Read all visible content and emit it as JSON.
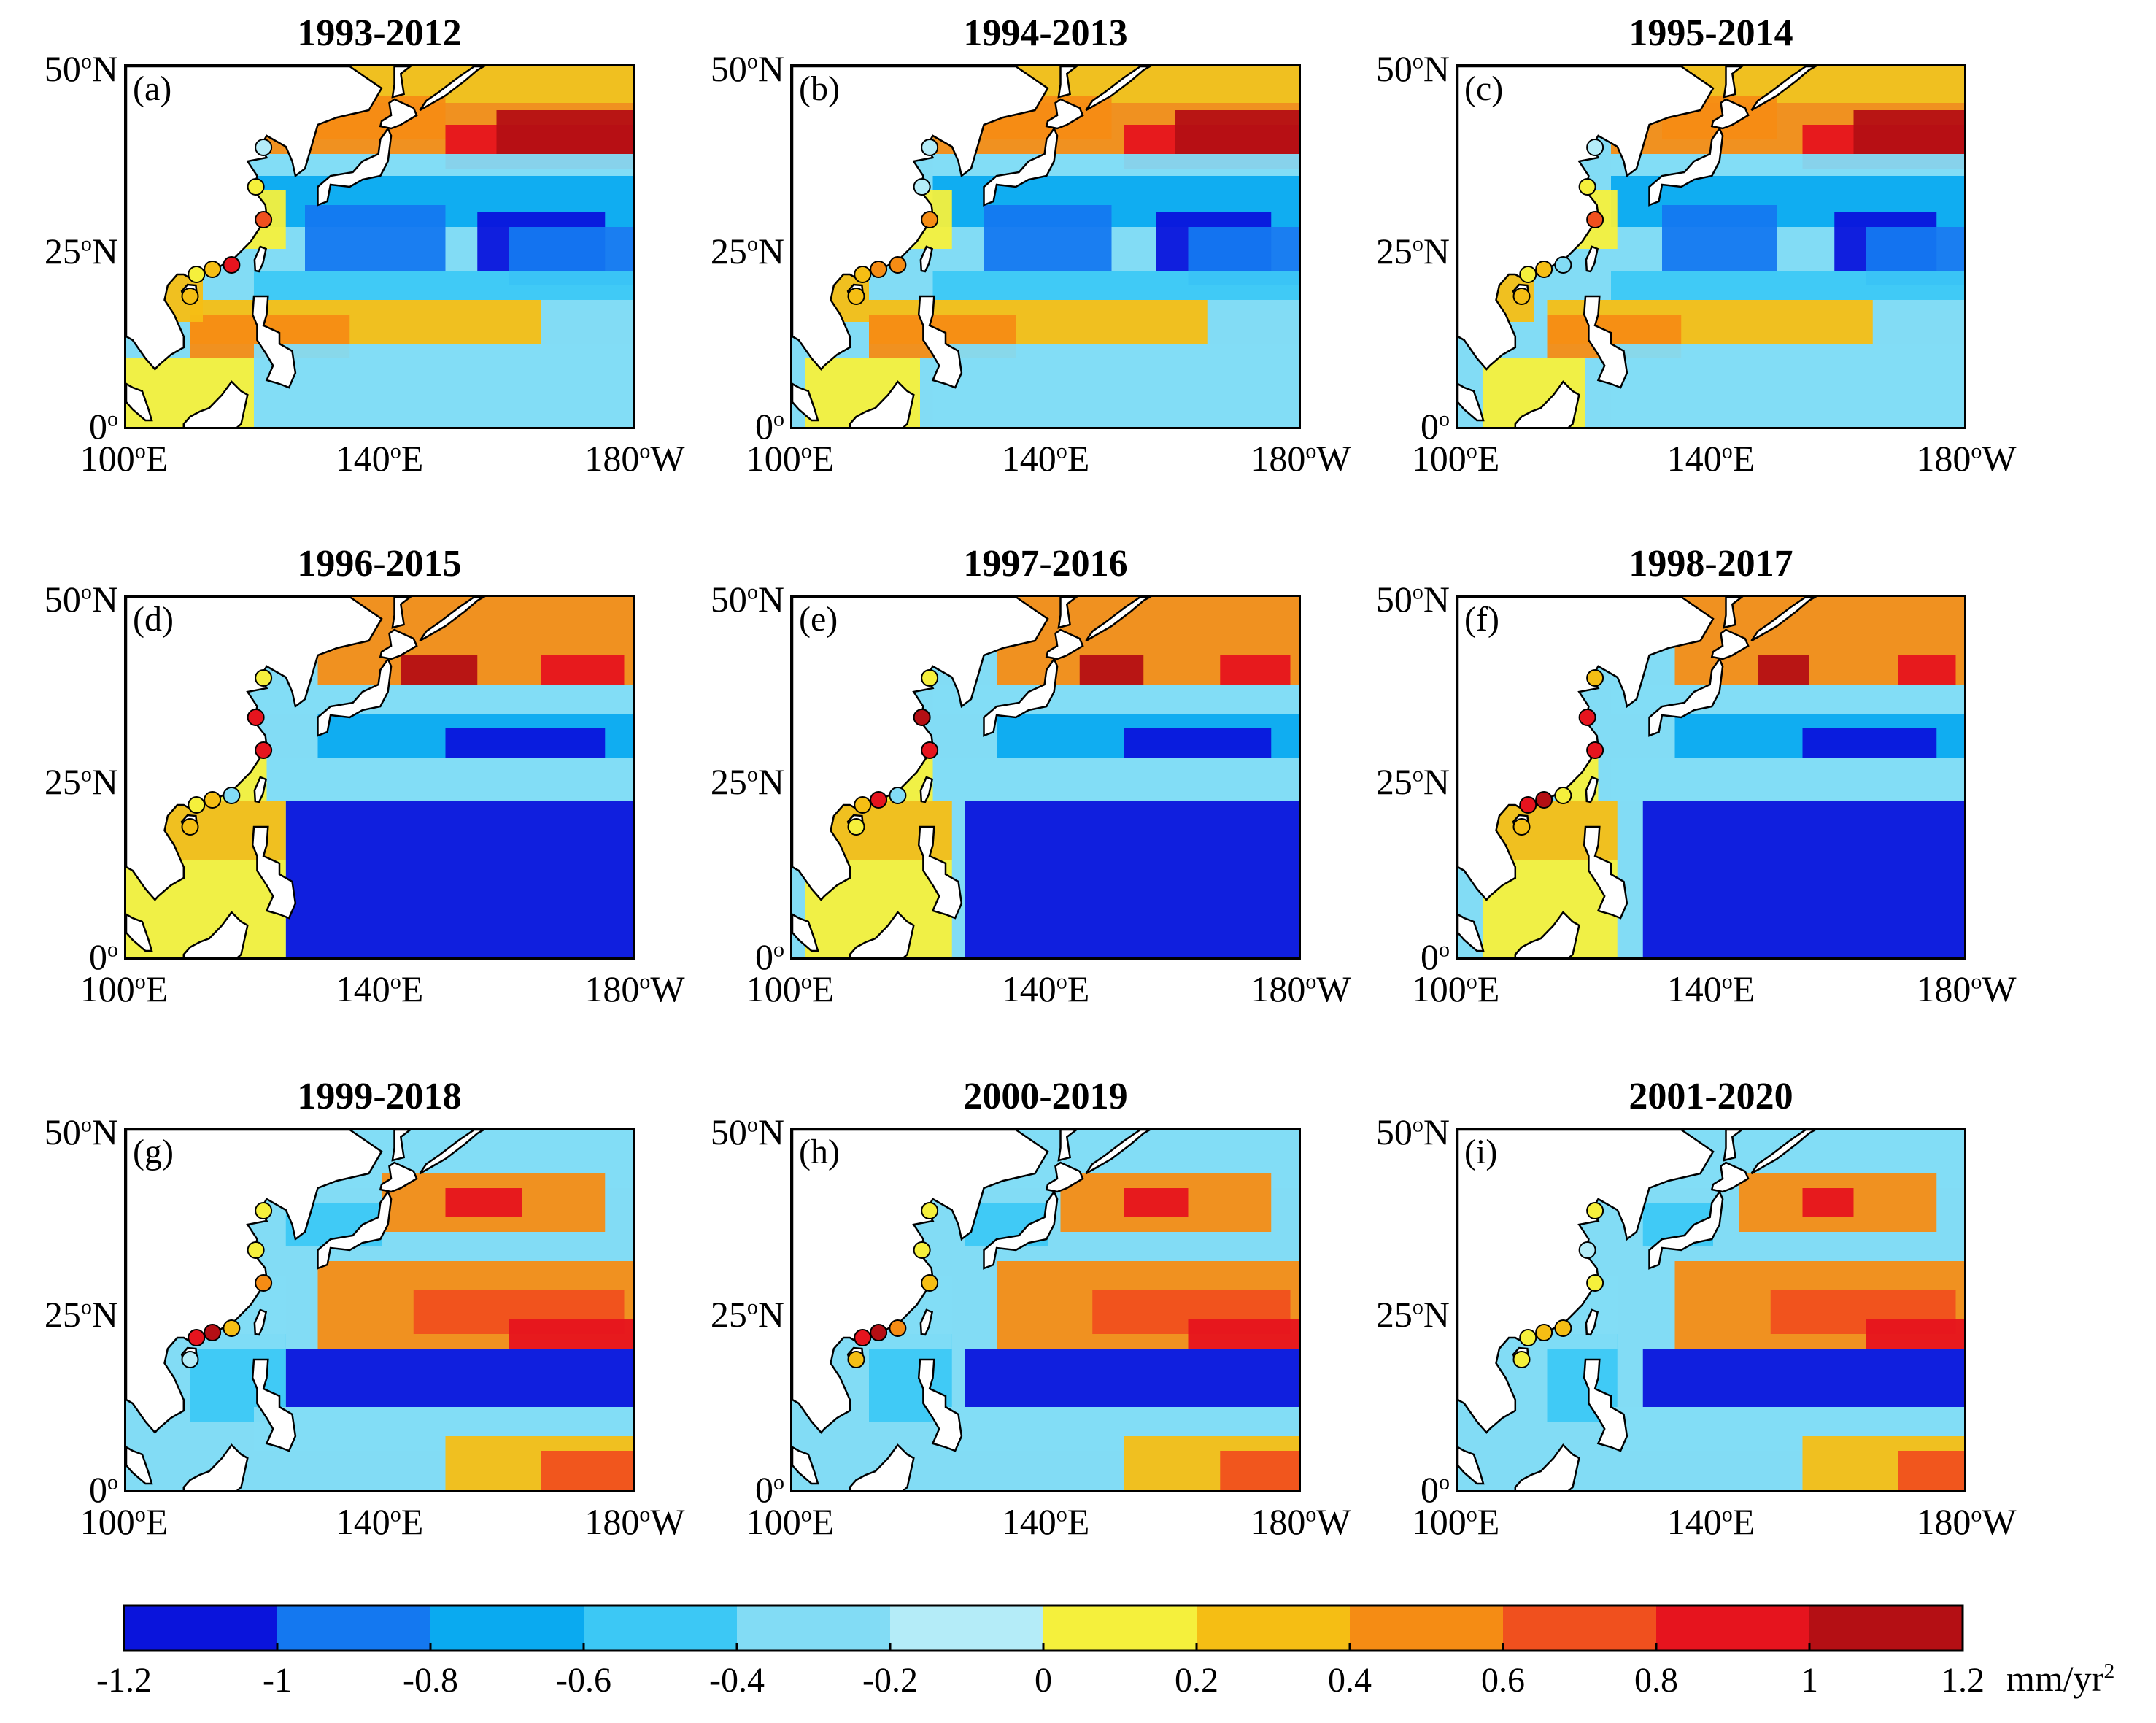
{
  "figure": {
    "panels": [
      {
        "tag": "(a)",
        "title": "1993-2012",
        "pattern": "early"
      },
      {
        "tag": "(b)",
        "title": "1994-2013",
        "pattern": "early"
      },
      {
        "tag": "(c)",
        "title": "1995-2014",
        "pattern": "early"
      },
      {
        "tag": "(d)",
        "title": "1996-2015",
        "pattern": "mid"
      },
      {
        "tag": "(e)",
        "title": "1997-2016",
        "pattern": "mid"
      },
      {
        "tag": "(f)",
        "title": "1998-2017",
        "pattern": "mid"
      },
      {
        "tag": "(g)",
        "title": "1999-2018",
        "pattern": "late"
      },
      {
        "tag": "(h)",
        "title": "2000-2019",
        "pattern": "late"
      },
      {
        "tag": "(i)",
        "title": "2001-2020",
        "pattern": "late"
      }
    ],
    "lat_labels": [
      "50",
      "25",
      "0"
    ],
    "lat_suffix": "N",
    "lon_labels": [
      "100",
      "140",
      "180"
    ],
    "lon_suffixes": [
      "E",
      "E",
      "W"
    ],
    "degree_mark": "o"
  },
  "colorbar": {
    "ticks": [
      "-1.2",
      "-1",
      "-0.8",
      "-0.6",
      "-0.4",
      "-0.2",
      "0",
      "0.2",
      "0.4",
      "0.6",
      "0.8",
      "1",
      "1.2"
    ],
    "unit_text": "mm/yr",
    "unit_exp": "2",
    "colors": [
      "#0a14dc",
      "#1478f0",
      "#0aaaf0",
      "#3cc8f5",
      "#82dcf5",
      "#b4ecf8",
      "#f5f03c",
      "#f5be14",
      "#f58c14",
      "#f0501e",
      "#e6141e",
      "#b40f14"
    ]
  },
  "stations": {
    "positions": [
      {
        "lon": 121.5,
        "lat": 38.9
      },
      {
        "lon": 120.3,
        "lat": 33.5
      },
      {
        "lon": 121.5,
        "lat": 29.0
      },
      {
        "lon": 113.5,
        "lat": 22.2
      },
      {
        "lon": 111.0,
        "lat": 21.5
      },
      {
        "lon": 116.5,
        "lat": 22.8
      },
      {
        "lon": 110.0,
        "lat": 18.5
      }
    ],
    "colors": [
      [
        "#b4ecf8",
        "#f5f03c",
        "#f0501e",
        "#f5be14",
        "#f5f03c",
        "#e6141e",
        "#f5be14"
      ],
      [
        "#b4ecf8",
        "#b4ecf8",
        "#f58c14",
        "#f58c14",
        "#f5be14",
        "#f58c14",
        "#f5be14"
      ],
      [
        "#b4ecf8",
        "#f5f03c",
        "#f0501e",
        "#f5be14",
        "#f5f03c",
        "#82dcf5",
        "#f5be14"
      ],
      [
        "#f5f03c",
        "#e6141e",
        "#e6141e",
        "#f5be14",
        "#f5f03c",
        "#82dcf5",
        "#f5be14"
      ],
      [
        "#f5f03c",
        "#b40f14",
        "#e6141e",
        "#e6141e",
        "#f5be14",
        "#82dcf5",
        "#f5f03c"
      ],
      [
        "#f5be14",
        "#e6141e",
        "#e6141e",
        "#b40f14",
        "#e6141e",
        "#f5f03c",
        "#f5be14"
      ],
      [
        "#f5f03c",
        "#f5f03c",
        "#f58c14",
        "#b40f14",
        "#e6141e",
        "#f5be14",
        "#b4ecf8"
      ],
      [
        "#f5f03c",
        "#f5f03c",
        "#f5be14",
        "#b40f14",
        "#e6141e",
        "#f58c14",
        "#f5be14"
      ],
      [
        "#f5f03c",
        "#b4ecf8",
        "#f5f03c",
        "#f5be14",
        "#f5f03c",
        "#f5be14",
        "#f5f03c"
      ]
    ]
  }
}
